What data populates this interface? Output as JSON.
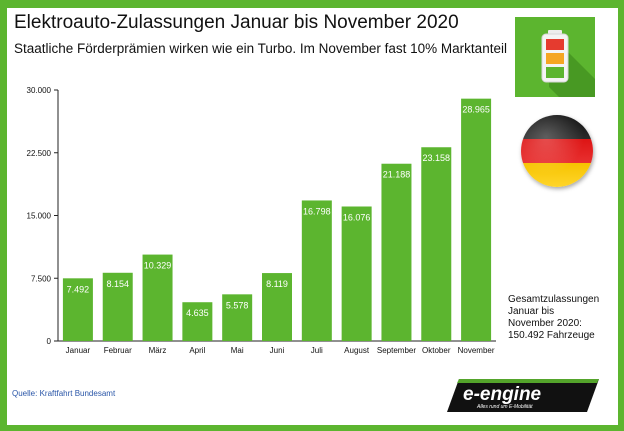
{
  "header": {
    "title": "Elektroauto-Zulassungen Januar bis November 2020",
    "subtitle": "Staatliche Förderprämien wirken wie ein Turbo. Im November fast 10% Marktanteil"
  },
  "colors": {
    "bar": "#5cb52f",
    "frame": "#5cb52f",
    "value_label": "#ffffff",
    "text": "#111111",
    "source_link": "#2a56a8"
  },
  "icons": {
    "battery": "battery-icon",
    "flag": "germany-flag-icon",
    "logo": "e-engine-logo"
  },
  "chart_data": {
    "type": "bar",
    "categories": [
      "Januar",
      "Februar",
      "März",
      "April",
      "Mai",
      "Juni",
      "Juli",
      "August",
      "September",
      "Oktober",
      "November"
    ],
    "values": [
      7492,
      8154,
      10329,
      4635,
      5578,
      8119,
      16798,
      16076,
      21188,
      23158,
      28965
    ],
    "value_labels": [
      "7.492",
      "8.154",
      "10.329",
      "4.635",
      "5.578",
      "8.119",
      "16.798",
      "16.076",
      "21.188",
      "23.158",
      "28.965"
    ],
    "yticks": [
      0,
      7500,
      15000,
      22500,
      30000
    ],
    "ytick_labels": [
      "0",
      "7.500",
      "15.000",
      "22.500",
      "30.000"
    ],
    "ylim": [
      0,
      30000
    ],
    "title": "Elektroauto-Zulassungen Januar bis November 2020",
    "xlabel": "",
    "ylabel": "",
    "grid": false,
    "legend": "none"
  },
  "summary": {
    "lines": [
      "Gesamtzulassungen",
      "Januar bis",
      "November 2020:",
      "150.492 Fahrzeuge"
    ]
  },
  "source": "Quelle: Kraftfahrt Bundesamt",
  "logo": {
    "text": "e-engine",
    "tagline": "Alles rund um E-Mobilität"
  }
}
